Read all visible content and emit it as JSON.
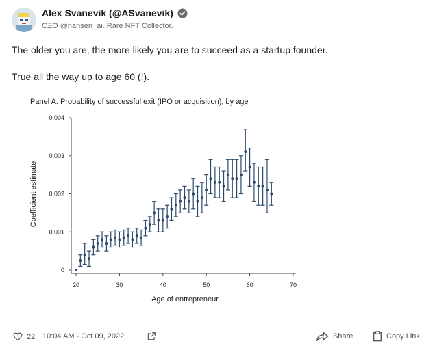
{
  "author": {
    "name": "Alex Svanevik (@ASvanevik)",
    "bio": "CΞO @nansen_ai. Rare NFT Collector."
  },
  "tweet": {
    "line1": "The older you are, the more likely you are to succeed as a startup founder.",
    "line2": "True all the way up to age 60 (!)."
  },
  "chart_data": {
    "type": "scatter",
    "title": "Panel A. Probability of successful exit (IPO or acquisition), by age",
    "xlabel": "Age of entrepreneur",
    "ylabel": "Coefficient estimate",
    "xlim": [
      20,
      70
    ],
    "ylim": [
      0,
      0.004
    ],
    "xticks": [
      "20",
      "30",
      "40",
      "50",
      "60",
      "70"
    ],
    "yticks": [
      "0",
      "0.001",
      "0.002",
      "0.003",
      "0.004"
    ],
    "grid": false,
    "error_bars": true,
    "points": [
      {
        "x": 20,
        "y": 0.0,
        "lo": 0.0,
        "hi": 0.0
      },
      {
        "x": 21,
        "y": 0.00025,
        "lo": 0.0001,
        "hi": 0.0004
      },
      {
        "x": 22,
        "y": 0.0004,
        "lo": 0.00015,
        "hi": 0.0007
      },
      {
        "x": 23,
        "y": 0.0003,
        "lo": 0.0001,
        "hi": 0.0005
      },
      {
        "x": 24,
        "y": 0.0006,
        "lo": 0.0004,
        "hi": 0.0008
      },
      {
        "x": 25,
        "y": 0.0007,
        "lo": 0.0005,
        "hi": 0.0009
      },
      {
        "x": 26,
        "y": 0.0008,
        "lo": 0.0006,
        "hi": 0.001
      },
      {
        "x": 27,
        "y": 0.0007,
        "lo": 0.0005,
        "hi": 0.0009
      },
      {
        "x": 28,
        "y": 0.0008,
        "lo": 0.0006,
        "hi": 0.001
      },
      {
        "x": 29,
        "y": 0.00085,
        "lo": 0.00065,
        "hi": 0.00105
      },
      {
        "x": 30,
        "y": 0.0008,
        "lo": 0.0006,
        "hi": 0.001
      },
      {
        "x": 31,
        "y": 0.00085,
        "lo": 0.00065,
        "hi": 0.00105
      },
      {
        "x": 32,
        "y": 0.0009,
        "lo": 0.0007,
        "hi": 0.0011
      },
      {
        "x": 33,
        "y": 0.0008,
        "lo": 0.0006,
        "hi": 0.001
      },
      {
        "x": 34,
        "y": 0.0009,
        "lo": 0.0007,
        "hi": 0.0011
      },
      {
        "x": 35,
        "y": 0.00085,
        "lo": 0.00065,
        "hi": 0.00105
      },
      {
        "x": 36,
        "y": 0.0011,
        "lo": 0.0009,
        "hi": 0.0013
      },
      {
        "x": 37,
        "y": 0.0012,
        "lo": 0.001,
        "hi": 0.0014
      },
      {
        "x": 38,
        "y": 0.0015,
        "lo": 0.0012,
        "hi": 0.0018
      },
      {
        "x": 39,
        "y": 0.0013,
        "lo": 0.001,
        "hi": 0.0016
      },
      {
        "x": 40,
        "y": 0.0013,
        "lo": 0.001,
        "hi": 0.0016
      },
      {
        "x": 41,
        "y": 0.0014,
        "lo": 0.0011,
        "hi": 0.0017
      },
      {
        "x": 42,
        "y": 0.0016,
        "lo": 0.0013,
        "hi": 0.0019
      },
      {
        "x": 43,
        "y": 0.0017,
        "lo": 0.0014,
        "hi": 0.002
      },
      {
        "x": 44,
        "y": 0.0018,
        "lo": 0.0015,
        "hi": 0.0021
      },
      {
        "x": 45,
        "y": 0.0019,
        "lo": 0.0016,
        "hi": 0.0022
      },
      {
        "x": 46,
        "y": 0.0018,
        "lo": 0.0015,
        "hi": 0.0021
      },
      {
        "x": 47,
        "y": 0.002,
        "lo": 0.0016,
        "hi": 0.0024
      },
      {
        "x": 48,
        "y": 0.0018,
        "lo": 0.0014,
        "hi": 0.0022
      },
      {
        "x": 49,
        "y": 0.0019,
        "lo": 0.0015,
        "hi": 0.0023
      },
      {
        "x": 50,
        "y": 0.0021,
        "lo": 0.0017,
        "hi": 0.0025
      },
      {
        "x": 51,
        "y": 0.0024,
        "lo": 0.002,
        "hi": 0.0029
      },
      {
        "x": 52,
        "y": 0.0023,
        "lo": 0.0019,
        "hi": 0.0027
      },
      {
        "x": 53,
        "y": 0.0023,
        "lo": 0.0019,
        "hi": 0.0027
      },
      {
        "x": 54,
        "y": 0.0022,
        "lo": 0.0018,
        "hi": 0.0026
      },
      {
        "x": 55,
        "y": 0.0025,
        "lo": 0.0021,
        "hi": 0.0029
      },
      {
        "x": 56,
        "y": 0.0024,
        "lo": 0.0019,
        "hi": 0.0029
      },
      {
        "x": 57,
        "y": 0.0024,
        "lo": 0.0019,
        "hi": 0.0029
      },
      {
        "x": 58,
        "y": 0.0025,
        "lo": 0.002,
        "hi": 0.003
      },
      {
        "x": 59,
        "y": 0.0031,
        "lo": 0.0026,
        "hi": 0.0037
      },
      {
        "x": 60,
        "y": 0.0027,
        "lo": 0.0022,
        "hi": 0.0032
      },
      {
        "x": 61,
        "y": 0.0023,
        "lo": 0.0018,
        "hi": 0.0028
      },
      {
        "x": 62,
        "y": 0.0022,
        "lo": 0.0017,
        "hi": 0.0027
      },
      {
        "x": 63,
        "y": 0.0022,
        "lo": 0.0017,
        "hi": 0.0027
      },
      {
        "x": 64,
        "y": 0.0021,
        "lo": 0.0015,
        "hi": 0.0029
      },
      {
        "x": 65,
        "y": 0.002,
        "lo": 0.0017,
        "hi": 0.0023
      }
    ],
    "color": "#2b4a6b"
  },
  "footer": {
    "likes": "22",
    "timestamp": "10:04 AM - Oct 09, 2022",
    "share_label": "Share",
    "copy_label": "Copy Link"
  },
  "icons": {
    "avatar": "avatar-image",
    "verified": "verified-badge-icon",
    "like": "heart-icon",
    "external": "external-link-icon",
    "share": "share-arrow-icon",
    "copy": "clipboard-icon"
  }
}
